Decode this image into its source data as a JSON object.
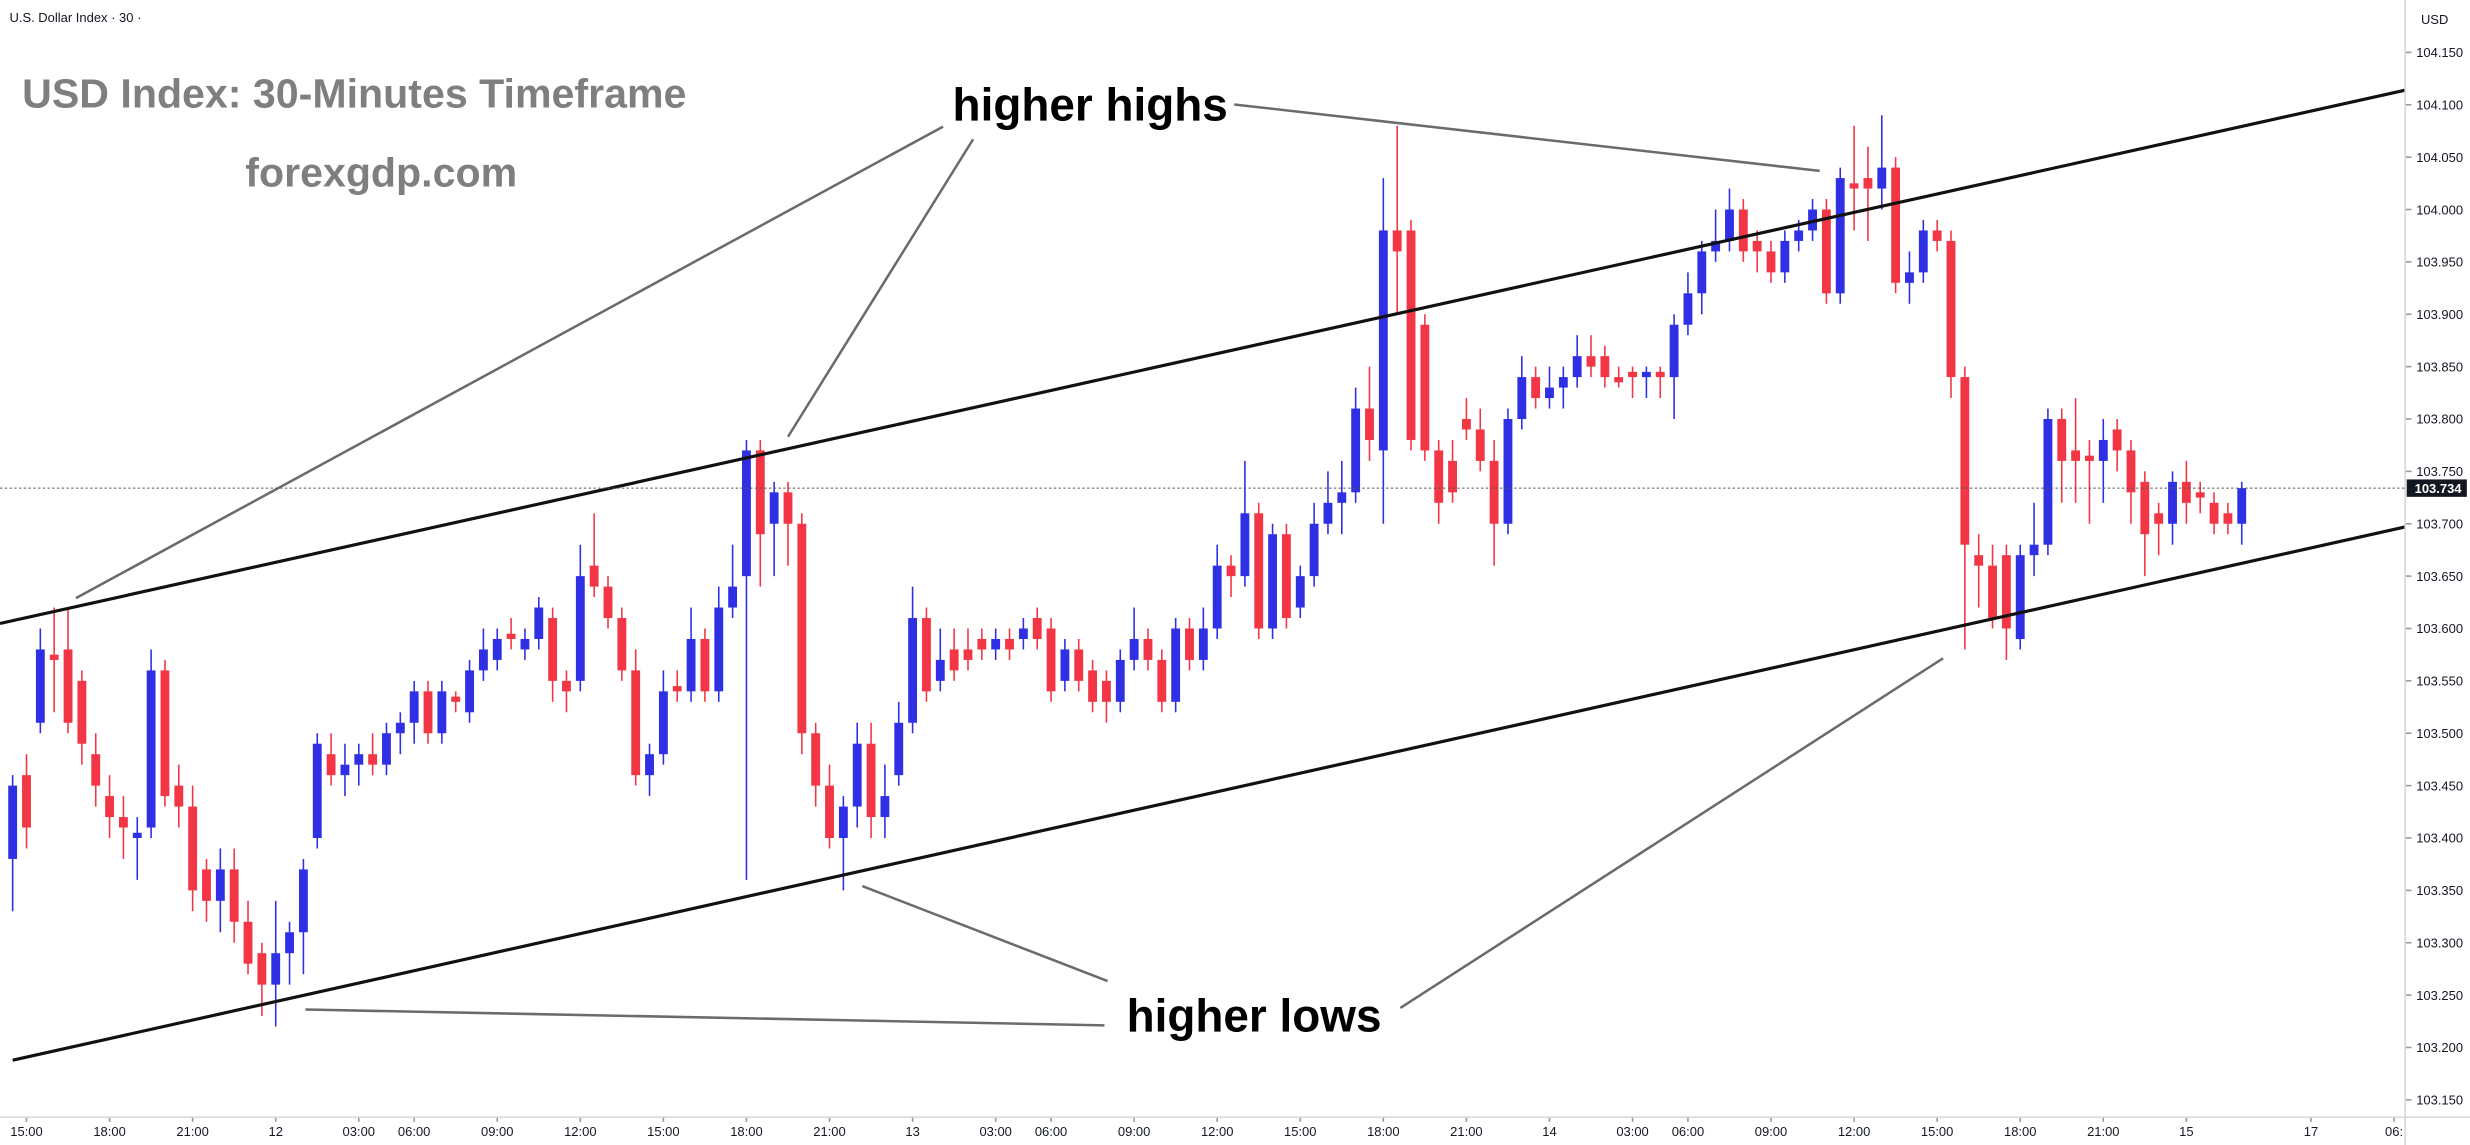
{
  "chart_data": {
    "type": "candlestick",
    "symbol": "U.S. Dollar Index · 30 ·",
    "currency": "USD",
    "title": "USD Index: 30-Minutes Timeframe",
    "subtitle": "forexgdp.com",
    "annotations": [
      "higher highs",
      "higher lows"
    ],
    "up_color": "#2f2fe4",
    "down_color": "#f23645",
    "last_price": 103.734,
    "grid": false,
    "xlim": [
      -0.914,
      172.8
    ],
    "ylim": [
      103.1335,
      104.2
    ],
    "xticks": [
      {
        "value": 1,
        "label": "15:00"
      },
      {
        "value": 7,
        "label": "18:00"
      },
      {
        "value": 13,
        "label": "21:00"
      },
      {
        "value": 19,
        "label": "12"
      },
      {
        "value": 25,
        "label": "03:00"
      },
      {
        "value": 29,
        "label": "06:00"
      },
      {
        "value": 35,
        "label": "09:00"
      },
      {
        "value": 41,
        "label": "12:00"
      },
      {
        "value": 47,
        "label": "15:00"
      },
      {
        "value": 53,
        "label": "18:00"
      },
      {
        "value": 59,
        "label": "21:00"
      },
      {
        "value": 65,
        "label": "13"
      },
      {
        "value": 71,
        "label": "03:00"
      },
      {
        "value": 75,
        "label": "06:00"
      },
      {
        "value": 81,
        "label": "09:00"
      },
      {
        "value": 87,
        "label": "12:00"
      },
      {
        "value": 93,
        "label": "15:00"
      },
      {
        "value": 99,
        "label": "18:00"
      },
      {
        "value": 105,
        "label": "21:00"
      },
      {
        "value": 111,
        "label": "14"
      },
      {
        "value": 117,
        "label": "03:00"
      },
      {
        "value": 121,
        "label": "06:00"
      },
      {
        "value": 127,
        "label": "09:00"
      },
      {
        "value": 133,
        "label": "12:00"
      },
      {
        "value": 139,
        "label": "15:00"
      },
      {
        "value": 145,
        "label": "18:00"
      },
      {
        "value": 151,
        "label": "21:00"
      },
      {
        "value": 157,
        "label": "15"
      },
      {
        "value": 166,
        "label": "17"
      },
      {
        "value": 172,
        "label": "06:"
      }
    ],
    "yticks": [
      {
        "value": 103.15,
        "label": "103.150"
      },
      {
        "value": 103.2,
        "label": "103.200"
      },
      {
        "value": 103.25,
        "label": "103.250"
      },
      {
        "value": 103.3,
        "label": "103.300"
      },
      {
        "value": 103.35,
        "label": "103.350"
      },
      {
        "value": 103.4,
        "label": "103.400"
      },
      {
        "value": 103.45,
        "label": "103.450"
      },
      {
        "value": 103.5,
        "label": "103.500"
      },
      {
        "value": 103.55,
        "label": "103.550"
      },
      {
        "value": 103.6,
        "label": "103.600"
      },
      {
        "value": 103.65,
        "label": "103.650"
      },
      {
        "value": 103.7,
        "label": "103.700"
      },
      {
        "value": 103.75,
        "label": "103.750"
      },
      {
        "value": 103.8,
        "label": "103.800"
      },
      {
        "value": 103.85,
        "label": "103.850"
      },
      {
        "value": 103.9,
        "label": "103.900"
      },
      {
        "value": 103.95,
        "label": "103.950"
      },
      {
        "value": 104.0,
        "label": "104.000"
      },
      {
        "value": 104.05,
        "label": "104.050"
      },
      {
        "value": 104.1,
        "label": "104.100"
      },
      {
        "value": 104.15,
        "label": "104.150"
      }
    ],
    "x": [
      0,
      1,
      2,
      3,
      4,
      5,
      6,
      7,
      8,
      9,
      10,
      11,
      12,
      13,
      14,
      15,
      16,
      17,
      18,
      19,
      20,
      21,
      22,
      23,
      24,
      25,
      26,
      27,
      28,
      29,
      30,
      31,
      32,
      33,
      34,
      35,
      36,
      37,
      38,
      39,
      40,
      41,
      42,
      43,
      44,
      45,
      46,
      47,
      48,
      49,
      50,
      51,
      52,
      53,
      54,
      55,
      56,
      57,
      58,
      59,
      60,
      61,
      62,
      63,
      64,
      65,
      66,
      67,
      68,
      69,
      70,
      71,
      72,
      73,
      74,
      75,
      76,
      77,
      78,
      79,
      80,
      81,
      82,
      83,
      84,
      85,
      86,
      87,
      88,
      89,
      90,
      91,
      92,
      93,
      94,
      95,
      96,
      97,
      98,
      99,
      100,
      101,
      102,
      103,
      104,
      105,
      106,
      107,
      108,
      109,
      110,
      111,
      112,
      113,
      114,
      115,
      116,
      117,
      118,
      119,
      120,
      121,
      122,
      123,
      124,
      125,
      126,
      127,
      128,
      129,
      130,
      131,
      132,
      133,
      134,
      135,
      136,
      137,
      138,
      139,
      140,
      141,
      142,
      143,
      144,
      145,
      146,
      147,
      148,
      149,
      150,
      151,
      152,
      153,
      154,
      155,
      156,
      157,
      158,
      159,
      160,
      161
    ],
    "candles": [
      [
        103.38,
        103.46,
        103.33,
        103.45
      ],
      [
        103.46,
        103.48,
        103.39,
        103.41
      ],
      [
        103.51,
        103.6,
        103.5,
        103.58
      ],
      [
        103.575,
        103.62,
        103.52,
        103.57
      ],
      [
        103.58,
        103.62,
        103.5,
        103.51
      ],
      [
        103.55,
        103.56,
        103.47,
        103.49
      ],
      [
        103.48,
        103.5,
        103.43,
        103.45
      ],
      [
        103.44,
        103.46,
        103.4,
        103.42
      ],
      [
        103.42,
        103.44,
        103.38,
        103.41
      ],
      [
        103.4,
        103.42,
        103.36,
        103.405
      ],
      [
        103.41,
        103.58,
        103.4,
        103.56
      ],
      [
        103.56,
        103.57,
        103.43,
        103.44
      ],
      [
        103.45,
        103.47,
        103.41,
        103.43
      ],
      [
        103.43,
        103.45,
        103.33,
        103.35
      ],
      [
        103.37,
        103.38,
        103.32,
        103.34
      ],
      [
        103.34,
        103.39,
        103.31,
        103.37
      ],
      [
        103.37,
        103.39,
        103.3,
        103.32
      ],
      [
        103.32,
        103.34,
        103.27,
        103.28
      ],
      [
        103.29,
        103.3,
        103.23,
        103.26
      ],
      [
        103.26,
        103.34,
        103.22,
        103.29
      ],
      [
        103.29,
        103.32,
        103.26,
        103.31
      ],
      [
        103.31,
        103.38,
        103.27,
        103.37
      ],
      [
        103.4,
        103.5,
        103.39,
        103.49
      ],
      [
        103.48,
        103.5,
        103.45,
        103.46
      ],
      [
        103.46,
        103.49,
        103.44,
        103.47
      ],
      [
        103.47,
        103.49,
        103.45,
        103.48
      ],
      [
        103.48,
        103.5,
        103.46,
        103.47
      ],
      [
        103.47,
        103.51,
        103.46,
        103.5
      ],
      [
        103.5,
        103.52,
        103.48,
        103.51
      ],
      [
        103.51,
        103.55,
        103.49,
        103.54
      ],
      [
        103.54,
        103.55,
        103.49,
        103.5
      ],
      [
        103.5,
        103.55,
        103.49,
        103.54
      ],
      [
        103.535,
        103.54,
        103.52,
        103.53
      ],
      [
        103.52,
        103.57,
        103.51,
        103.56
      ],
      [
        103.56,
        103.6,
        103.55,
        103.58
      ],
      [
        103.57,
        103.6,
        103.56,
        103.59
      ],
      [
        103.595,
        103.61,
        103.58,
        103.59
      ],
      [
        103.58,
        103.6,
        103.57,
        103.59
      ],
      [
        103.59,
        103.63,
        103.58,
        103.62
      ],
      [
        103.61,
        103.62,
        103.53,
        103.55
      ],
      [
        103.55,
        103.56,
        103.52,
        103.54
      ],
      [
        103.55,
        103.68,
        103.54,
        103.65
      ],
      [
        103.66,
        103.71,
        103.63,
        103.64
      ],
      [
        103.64,
        103.65,
        103.6,
        103.61
      ],
      [
        103.61,
        103.62,
        103.55,
        103.56
      ],
      [
        103.56,
        103.58,
        103.45,
        103.46
      ],
      [
        103.46,
        103.49,
        103.44,
        103.48
      ],
      [
        103.48,
        103.56,
        103.47,
        103.54
      ],
      [
        103.545,
        103.56,
        103.53,
        103.54
      ],
      [
        103.54,
        103.62,
        103.53,
        103.59
      ],
      [
        103.59,
        103.6,
        103.53,
        103.54
      ],
      [
        103.54,
        103.64,
        103.53,
        103.62
      ],
      [
        103.62,
        103.68,
        103.61,
        103.64
      ],
      [
        103.65,
        103.78,
        103.36,
        103.77
      ],
      [
        103.77,
        103.78,
        103.64,
        103.69
      ],
      [
        103.7,
        103.74,
        103.65,
        103.73
      ],
      [
        103.73,
        103.74,
        103.66,
        103.7
      ],
      [
        103.7,
        103.71,
        103.48,
        103.5
      ],
      [
        103.5,
        103.51,
        103.43,
        103.45
      ],
      [
        103.45,
        103.47,
        103.39,
        103.4
      ],
      [
        103.4,
        103.44,
        103.35,
        103.43
      ],
      [
        103.43,
        103.51,
        103.41,
        103.49
      ],
      [
        103.49,
        103.51,
        103.4,
        103.42
      ],
      [
        103.42,
        103.47,
        103.4,
        103.44
      ],
      [
        103.46,
        103.53,
        103.45,
        103.51
      ],
      [
        103.51,
        103.64,
        103.5,
        103.61
      ],
      [
        103.61,
        103.62,
        103.53,
        103.54
      ],
      [
        103.55,
        103.6,
        103.54,
        103.57
      ],
      [
        103.58,
        103.6,
        103.55,
        103.56
      ],
      [
        103.58,
        103.6,
        103.56,
        103.57
      ],
      [
        103.59,
        103.6,
        103.57,
        103.58
      ],
      [
        103.58,
        103.6,
        103.57,
        103.59
      ],
      [
        103.59,
        103.6,
        103.57,
        103.58
      ],
      [
        103.59,
        103.61,
        103.58,
        103.6
      ],
      [
        103.61,
        103.62,
        103.58,
        103.59
      ],
      [
        103.6,
        103.61,
        103.53,
        103.54
      ],
      [
        103.55,
        103.59,
        103.54,
        103.58
      ],
      [
        103.58,
        103.59,
        103.54,
        103.55
      ],
      [
        103.56,
        103.57,
        103.52,
        103.53
      ],
      [
        103.55,
        103.56,
        103.51,
        103.53
      ],
      [
        103.53,
        103.58,
        103.52,
        103.57
      ],
      [
        103.57,
        103.62,
        103.56,
        103.59
      ],
      [
        103.59,
        103.6,
        103.56,
        103.57
      ],
      [
        103.57,
        103.58,
        103.52,
        103.53
      ],
      [
        103.53,
        103.61,
        103.52,
        103.6
      ],
      [
        103.6,
        103.61,
        103.56,
        103.57
      ],
      [
        103.57,
        103.62,
        103.56,
        103.6
      ],
      [
        103.6,
        103.68,
        103.59,
        103.66
      ],
      [
        103.66,
        103.67,
        103.63,
        103.65
      ],
      [
        103.65,
        103.76,
        103.64,
        103.71
      ],
      [
        103.71,
        103.72,
        103.59,
        103.6
      ],
      [
        103.6,
        103.7,
        103.59,
        103.69
      ],
      [
        103.69,
        103.7,
        103.6,
        103.61
      ],
      [
        103.62,
        103.66,
        103.61,
        103.65
      ],
      [
        103.65,
        103.72,
        103.64,
        103.7
      ],
      [
        103.7,
        103.75,
        103.69,
        103.72
      ],
      [
        103.72,
        103.76,
        103.69,
        103.73
      ],
      [
        103.73,
        103.83,
        103.72,
        103.81
      ],
      [
        103.81,
        103.85,
        103.76,
        103.78
      ],
      [
        103.77,
        104.03,
        103.7,
        103.98
      ],
      [
        103.98,
        104.08,
        103.9,
        103.96
      ],
      [
        103.98,
        103.99,
        103.77,
        103.78
      ],
      [
        103.89,
        103.9,
        103.76,
        103.77
      ],
      [
        103.77,
        103.78,
        103.7,
        103.72
      ],
      [
        103.76,
        103.78,
        103.72,
        103.73
      ],
      [
        103.8,
        103.82,
        103.78,
        103.79
      ],
      [
        103.79,
        103.81,
        103.75,
        103.76
      ],
      [
        103.76,
        103.78,
        103.66,
        103.7
      ],
      [
        103.7,
        103.81,
        103.69,
        103.8
      ],
      [
        103.8,
        103.86,
        103.79,
        103.84
      ],
      [
        103.84,
        103.85,
        103.81,
        103.82
      ],
      [
        103.82,
        103.85,
        103.81,
        103.83
      ],
      [
        103.83,
        103.85,
        103.81,
        103.84
      ],
      [
        103.84,
        103.88,
        103.83,
        103.86
      ],
      [
        103.86,
        103.88,
        103.84,
        103.85
      ],
      [
        103.86,
        103.87,
        103.83,
        103.84
      ],
      [
        103.84,
        103.85,
        103.83,
        103.835
      ],
      [
        103.845,
        103.85,
        103.82,
        103.84
      ],
      [
        103.84,
        103.85,
        103.82,
        103.845
      ],
      [
        103.845,
        103.85,
        103.82,
        103.84
      ],
      [
        103.84,
        103.9,
        103.8,
        103.89
      ],
      [
        103.89,
        103.94,
        103.88,
        103.92
      ],
      [
        103.92,
        103.97,
        103.9,
        103.96
      ],
      [
        103.96,
        104.0,
        103.95,
        103.97
      ],
      [
        103.97,
        104.02,
        103.96,
        104.0
      ],
      [
        104.0,
        104.01,
        103.95,
        103.96
      ],
      [
        103.97,
        103.98,
        103.94,
        103.96
      ],
      [
        103.96,
        103.97,
        103.93,
        103.94
      ],
      [
        103.94,
        103.98,
        103.93,
        103.97
      ],
      [
        103.97,
        103.99,
        103.96,
        103.98
      ],
      [
        103.98,
        104.01,
        103.97,
        104.0
      ],
      [
        104.0,
        104.01,
        103.91,
        103.92
      ],
      [
        103.92,
        104.04,
        103.91,
        104.03
      ],
      [
        104.025,
        104.08,
        103.98,
        104.02
      ],
      [
        104.03,
        104.06,
        103.97,
        104.02
      ],
      [
        104.02,
        104.09,
        104.0,
        104.04
      ],
      [
        104.04,
        104.05,
        103.92,
        103.93
      ],
      [
        103.93,
        103.96,
        103.91,
        103.94
      ],
      [
        103.94,
        103.99,
        103.93,
        103.98
      ],
      [
        103.98,
        103.99,
        103.96,
        103.97
      ],
      [
        103.97,
        103.98,
        103.82,
        103.84
      ],
      [
        103.84,
        103.85,
        103.58,
        103.68
      ],
      [
        103.67,
        103.69,
        103.62,
        103.66
      ],
      [
        103.66,
        103.68,
        103.6,
        103.61
      ],
      [
        103.67,
        103.68,
        103.57,
        103.6
      ],
      [
        103.59,
        103.68,
        103.58,
        103.67
      ],
      [
        103.67,
        103.72,
        103.65,
        103.68
      ],
      [
        103.68,
        103.81,
        103.67,
        103.8
      ],
      [
        103.8,
        103.81,
        103.72,
        103.76
      ],
      [
        103.77,
        103.82,
        103.72,
        103.76
      ],
      [
        103.765,
        103.78,
        103.7,
        103.76
      ],
      [
        103.76,
        103.8,
        103.72,
        103.78
      ],
      [
        103.79,
        103.8,
        103.75,
        103.77
      ],
      [
        103.77,
        103.78,
        103.7,
        103.73
      ],
      [
        103.74,
        103.75,
        103.65,
        103.69
      ],
      [
        103.71,
        103.72,
        103.67,
        103.7
      ],
      [
        103.7,
        103.75,
        103.68,
        103.74
      ],
      [
        103.74,
        103.76,
        103.7,
        103.72
      ],
      [
        103.73,
        103.74,
        103.71,
        103.725
      ],
      [
        103.72,
        103.73,
        103.69,
        103.7
      ],
      [
        103.71,
        103.72,
        103.69,
        103.7
      ],
      [
        103.7,
        103.74,
        103.68,
        103.734
      ]
    ]
  }
}
